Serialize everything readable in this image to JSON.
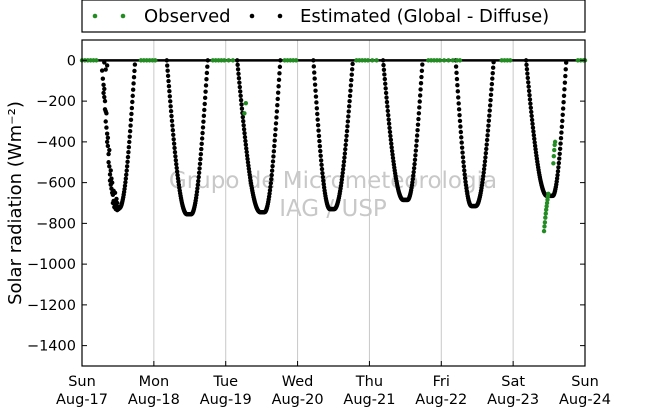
{
  "chart_data": {
    "type": "scatter",
    "title": "",
    "xlabel": "",
    "ylabel": "Solar radiation (Wm⁻²)",
    "ylim": [
      -1500,
      100
    ],
    "xlim": [
      0,
      7
    ],
    "grid": "vertical",
    "legend_position": "top",
    "legend": [
      "Observed",
      "Estimated (Global - Diffuse)"
    ],
    "x_ticks": [
      {
        "value": 0,
        "day": "Sun",
        "date": "Aug-17"
      },
      {
        "value": 1,
        "day": "Mon",
        "date": "Aug-18"
      },
      {
        "value": 2,
        "day": "Tue",
        "date": "Aug-19"
      },
      {
        "value": 3,
        "day": "Wed",
        "date": "Aug-20"
      },
      {
        "value": 4,
        "day": "Thu",
        "date": "Aug-21"
      },
      {
        "value": 5,
        "day": "Fri",
        "date": "Aug-22"
      },
      {
        "value": 6,
        "day": "Sat",
        "date": "Aug-23"
      },
      {
        "value": 7,
        "day": "Sun",
        "date": "Aug-24"
      }
    ],
    "y_ticks": [
      "0",
      "−200",
      "−400",
      "−600",
      "−800",
      "−1000",
      "−1200",
      "−1400"
    ],
    "y_tick_values": [
      0,
      -200,
      -400,
      -600,
      -800,
      -1000,
      -1200,
      -1400
    ],
    "series": [
      {
        "name": "Observed",
        "color": "#228b22",
        "segments": [
          {
            "x": [
              0.0,
              0.04,
              0.08,
              0.12,
              0.16,
              0.2
            ],
            "y": [
              0,
              0,
              0,
              0,
              0,
              0
            ]
          },
          {
            "x": [
              0.82,
              0.86,
              0.9,
              0.94,
              0.98,
              1.02
            ],
            "y": [
              0,
              0,
              0,
              0,
              0,
              0
            ]
          },
          {
            "x": [
              1.82,
              1.86,
              1.9,
              1.94,
              1.98,
              2.04,
              2.1
            ],
            "y": [
              0,
              0,
              0,
              0,
              0,
              0,
              0
            ]
          },
          {
            "x": [
              2.26,
              2.28
            ],
            "y": [
              -260,
              -210
            ]
          },
          {
            "x": [
              2.82,
              2.86,
              2.9,
              2.94,
              2.98
            ],
            "y": [
              0,
              0,
              0,
              0,
              0
            ]
          },
          {
            "x": [
              3.82,
              3.86,
              3.9,
              3.94,
              3.98,
              4.04,
              4.1
            ],
            "y": [
              0,
              0,
              0,
              0,
              0,
              0,
              0
            ]
          },
          {
            "x": [
              4.82,
              4.86,
              4.9,
              4.94,
              4.98,
              5.04,
              5.1,
              5.16,
              5.22,
              5.26
            ],
            "y": [
              0,
              0,
              0,
              0,
              0,
              0,
              0,
              0,
              0,
              0
            ]
          },
          {
            "x": [
              5.84,
              5.88,
              5.92,
              5.96
            ],
            "y": [
              0,
              0,
              0,
              0
            ]
          },
          {
            "x": [
              6.43,
              6.436,
              6.442,
              6.448,
              6.454,
              6.46,
              6.466,
              6.472,
              6.478,
              6.484,
              6.49,
              6.56,
              6.566,
              6.572,
              6.578,
              6.584
            ],
            "y": [
              -838,
              -815,
              -795,
              -772,
              -752,
              -733,
              -716,
              -700,
              -684,
              -668,
              -655,
              -505,
              -470,
              -440,
              -415,
              -400
            ]
          },
          {
            "x": [
              6.9,
              6.94,
              6.98,
              7.0
            ],
            "y": [
              0,
              0,
              0,
              0
            ]
          }
        ]
      },
      {
        "name": "Estimated (Global - Diffuse)",
        "color": "#000000",
        "zero_line": true,
        "days": [
          {
            "start": 0.22,
            "end": 0.74,
            "min_x": 0.52,
            "min_y": -725,
            "flat": 0.02
          },
          {
            "start": 1.18,
            "end": 1.75,
            "min_x": 1.49,
            "min_y": -755,
            "flat": 0.03
          },
          {
            "start": 2.16,
            "end": 2.76,
            "min_x": 2.51,
            "min_y": -745,
            "flat": 0.03
          },
          {
            "start": 3.22,
            "end": 3.77,
            "min_x": 3.48,
            "min_y": -730,
            "flat": 0.03
          },
          {
            "start": 4.19,
            "end": 4.74,
            "min_x": 4.5,
            "min_y": -685,
            "flat": 0.03
          },
          {
            "start": 5.2,
            "end": 5.73,
            "min_x": 5.45,
            "min_y": -715,
            "flat": 0.03
          },
          {
            "start": 6.18,
            "end": 6.74,
            "min_x": 6.51,
            "min_y": -665,
            "flat": 0.04
          }
        ],
        "scatter_day1": {
          "x": [
            0.28,
            0.29,
            0.3,
            0.3,
            0.31,
            0.31,
            0.32,
            0.32,
            0.33,
            0.33,
            0.34,
            0.34,
            0.35,
            0.35,
            0.36,
            0.36,
            0.37,
            0.37,
            0.38,
            0.38,
            0.39,
            0.39,
            0.4,
            0.4,
            0.41,
            0.41,
            0.42,
            0.42,
            0.43,
            0.43,
            0.44,
            0.44,
            0.45,
            0.45,
            0.46,
            0.46,
            0.47,
            0.47,
            0.48,
            0.48,
            0.49,
            0.49,
            0.5,
            0.51,
            0.35,
            0.33,
            0.31
          ],
          "y": [
            -50,
            -90,
            -120,
            -160,
            -180,
            -140,
            -200,
            -240,
            -250,
            -300,
            -330,
            -260,
            -360,
            -400,
            -420,
            -380,
            -460,
            -500,
            -520,
            -440,
            -560,
            -590,
            -610,
            -540,
            -630,
            -580,
            -650,
            -600,
            -660,
            -700,
            -690,
            -640,
            -700,
            -720,
            -650,
            -710,
            -690,
            -730,
            -720,
            -680,
            -700,
            -735,
            -720,
            -730,
            -25,
            -45,
            -10
          ]
        }
      }
    ],
    "watermark": [
      "Grupo de Micrometeorologia",
      "IAG / USP"
    ]
  }
}
